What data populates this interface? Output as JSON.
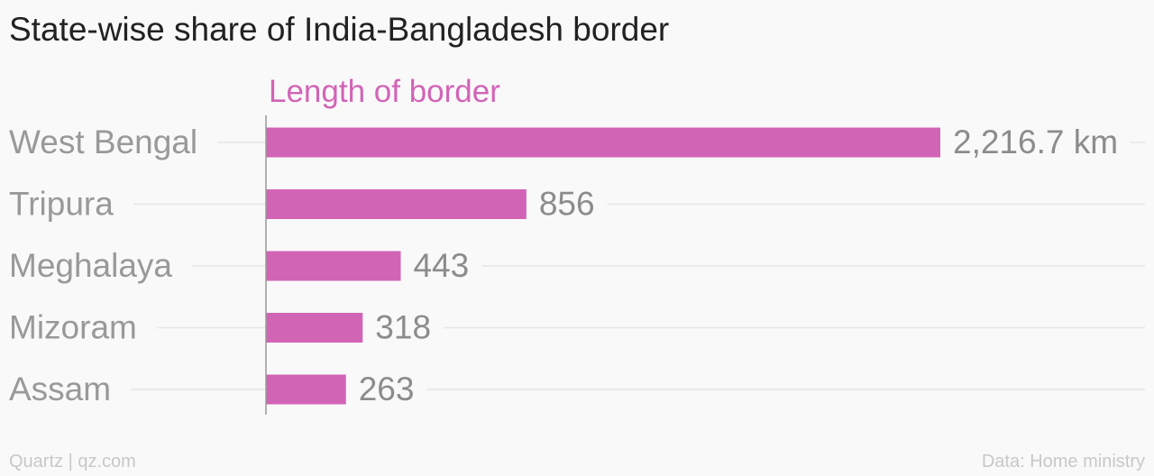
{
  "title": "State-wise share of India-Bangladesh border",
  "source": "Data: Home ministry",
  "branding": "Quartz | qz.com",
  "colors": {
    "bar": "#d264b6",
    "series_label": "#d264b6",
    "category_label": "#999999",
    "value_label": "#8c8c8c",
    "gridline": "#e6e6e6",
    "axis": "#999999"
  },
  "chart_data": {
    "type": "bar",
    "orientation": "horizontal",
    "series": [
      {
        "name": "Length of border",
        "values": [
          2216.7,
          856,
          443,
          318,
          263
        ]
      }
    ],
    "categories": [
      "West Bengal",
      "Tripura",
      "Meghalaya",
      "Mizoram",
      "Assam"
    ],
    "value_labels": [
      "2,216.7 km",
      "856",
      "443",
      "318",
      "263"
    ],
    "xlim": [
      0,
      2216.7
    ],
    "grid": true,
    "legend": "none"
  }
}
